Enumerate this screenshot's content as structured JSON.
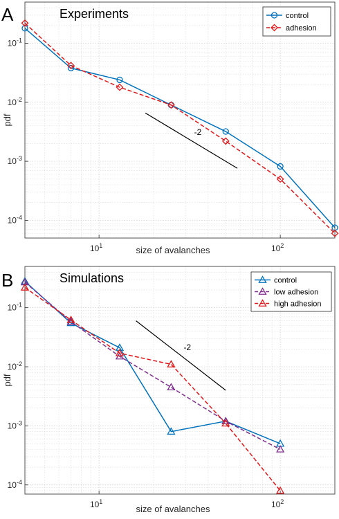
{
  "chart_data": [
    {
      "panel_letter": "A",
      "type": "line",
      "title": "Experiments",
      "xlabel": "size of avalanches",
      "ylabel": "pdf",
      "xscale": "log",
      "yscale": "log",
      "xlim": [
        3.9,
        200
      ],
      "ylim": [
        5e-05,
        0.5
      ],
      "grid": true,
      "legend_position": "top-right",
      "x_ticks": [
        {
          "value": 10,
          "base": "10",
          "exp": "1"
        },
        {
          "value": 100,
          "base": "10",
          "exp": "2"
        }
      ],
      "y_ticks": [
        {
          "value": 0.1,
          "base": "10",
          "exp": "-1"
        },
        {
          "value": 0.01,
          "base": "10",
          "exp": "-2"
        },
        {
          "value": 0.001,
          "base": "10",
          "exp": "-3"
        },
        {
          "value": 0.0001,
          "base": "10",
          "exp": "-4"
        }
      ],
      "series": [
        {
          "name": "control",
          "color": "#0072BD",
          "dash": "solid",
          "marker": "circle",
          "x": [
            3.9,
            7,
            13,
            25,
            50,
            100,
            200
          ],
          "y": [
            0.18,
            0.038,
            0.024,
            0.009,
            0.0032,
            0.00082,
            7.5e-05
          ]
        },
        {
          "name": "adhesion",
          "color": "#E0191B",
          "dash": "dashed",
          "marker": "diamond",
          "x": [
            3.9,
            7,
            13,
            25,
            50,
            100,
            200
          ],
          "y": [
            0.22,
            0.042,
            0.018,
            0.009,
            0.0022,
            0.0005,
            6e-05
          ]
        }
      ],
      "slope_line": {
        "label": "-2",
        "x": [
          18,
          58
        ],
        "y": [
          0.0066,
          0.00076
        ]
      }
    },
    {
      "panel_letter": "B",
      "type": "line",
      "title": "Simulations",
      "xlabel": "size of avalanches",
      "ylabel": "pdf",
      "xscale": "log",
      "yscale": "log",
      "xlim": [
        3.9,
        200
      ],
      "ylim": [
        7e-05,
        0.5
      ],
      "grid": true,
      "legend_position": "top-right",
      "x_ticks": [
        {
          "value": 10,
          "base": "10",
          "exp": "1"
        },
        {
          "value": 100,
          "base": "10",
          "exp": "2"
        }
      ],
      "y_ticks": [
        {
          "value": 0.1,
          "base": "10",
          "exp": "-1"
        },
        {
          "value": 0.01,
          "base": "10",
          "exp": "-2"
        },
        {
          "value": 0.001,
          "base": "10",
          "exp": "-3"
        },
        {
          "value": 0.0001,
          "base": "10",
          "exp": "-4"
        }
      ],
      "series": [
        {
          "name": "control",
          "color": "#0072BD",
          "dash": "solid",
          "marker": "triangle",
          "x": [
            3.9,
            7,
            13,
            25,
            50,
            100
          ],
          "y": [
            0.28,
            0.055,
            0.021,
            0.0008,
            0.0012,
            0.0005
          ]
        },
        {
          "name": "low adhesion",
          "color": "#7E2F8E",
          "dash": "dashed",
          "marker": "triangle",
          "x": [
            3.9,
            7,
            13,
            25,
            50,
            100
          ],
          "y": [
            0.27,
            0.058,
            0.015,
            0.0045,
            0.0012,
            0.0004
          ]
        },
        {
          "name": "high adhesion",
          "color": "#E0191B",
          "dash": "dashed",
          "marker": "triangle",
          "x": [
            3.9,
            7,
            13,
            25,
            50,
            100
          ],
          "y": [
            0.22,
            0.062,
            0.017,
            0.011,
            0.0011,
            8e-05
          ]
        }
      ],
      "slope_line": {
        "label": "-2",
        "x": [
          16,
          50
        ],
        "y": [
          0.06,
          0.004
        ]
      }
    }
  ]
}
